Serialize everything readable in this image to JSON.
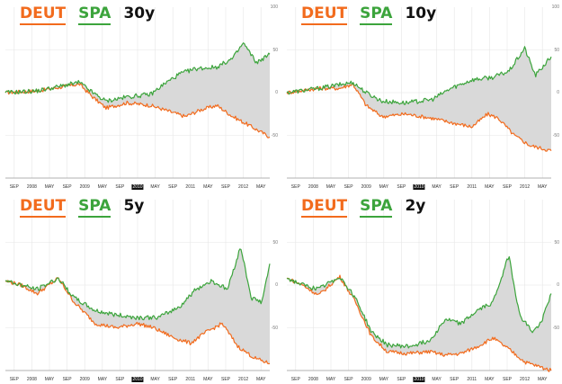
{
  "colors": {
    "deut": "#f26b1d",
    "spa": "#3ca43c",
    "fill": "#d9d9d9",
    "grid": "#e6e6e6"
  },
  "chart_data": [
    {
      "type": "line",
      "legend": [
        "DEUT",
        "SPA"
      ],
      "horizon": "30y",
      "ylim": [
        -100,
        100
      ],
      "yticks": [
        "100",
        "50",
        "0",
        "-50"
      ],
      "xticks": [
        "SEP",
        "2008",
        "MAY",
        "SEP",
        "2009",
        "MAY",
        "SEP",
        "2010",
        "MAY",
        "SEP",
        "2011",
        "MAY",
        "SEP",
        "2012",
        "MAY"
      ],
      "highlight_tick": 7,
      "grid": true,
      "series": [
        {
          "name": "DEUT",
          "anchors": [
            [
              0,
              0
            ],
            [
              0.12,
              2
            ],
            [
              0.28,
              10
            ],
            [
              0.33,
              -5
            ],
            [
              0.38,
              -18
            ],
            [
              0.46,
              -12
            ],
            [
              0.55,
              -15
            ],
            [
              0.62,
              -22
            ],
            [
              0.68,
              -28
            ],
            [
              0.74,
              -20
            ],
            [
              0.8,
              -15
            ],
            [
              0.86,
              -28
            ],
            [
              0.92,
              -38
            ],
            [
              1,
              -52
            ]
          ]
        },
        {
          "name": "SPA",
          "anchors": [
            [
              0,
              0
            ],
            [
              0.12,
              2
            ],
            [
              0.28,
              12
            ],
            [
              0.33,
              0
            ],
            [
              0.38,
              -10
            ],
            [
              0.46,
              -5
            ],
            [
              0.55,
              -2
            ],
            [
              0.6,
              10
            ],
            [
              0.66,
              22
            ],
            [
              0.72,
              28
            ],
            [
              0.8,
              30
            ],
            [
              0.86,
              40
            ],
            [
              0.9,
              58
            ],
            [
              0.95,
              35
            ],
            [
              1,
              45
            ]
          ]
        }
      ]
    },
    {
      "type": "line",
      "legend": [
        "DEUT",
        "SPA"
      ],
      "horizon": "10y",
      "ylim": [
        -100,
        100
      ],
      "yticks": [
        "100",
        "50",
        "0",
        "-50"
      ],
      "xticks": [
        "SEP",
        "2008",
        "MAY",
        "SEP",
        "2009",
        "MAY",
        "SEP",
        "2010",
        "MAY",
        "SEP",
        "2011",
        "MAY",
        "SEP",
        "2012",
        "MAY"
      ],
      "highlight_tick": 7,
      "grid": true,
      "series": [
        {
          "name": "DEUT",
          "anchors": [
            [
              0,
              0
            ],
            [
              0.12,
              5
            ],
            [
              0.2,
              5
            ],
            [
              0.25,
              10
            ],
            [
              0.3,
              -15
            ],
            [
              0.36,
              -28
            ],
            [
              0.45,
              -25
            ],
            [
              0.55,
              -30
            ],
            [
              0.62,
              -35
            ],
            [
              0.7,
              -40
            ],
            [
              0.76,
              -25
            ],
            [
              0.8,
              -30
            ],
            [
              0.86,
              -50
            ],
            [
              0.92,
              -62
            ],
            [
              1,
              -68
            ]
          ]
        },
        {
          "name": "SPA",
          "anchors": [
            [
              0,
              0
            ],
            [
              0.12,
              5
            ],
            [
              0.25,
              12
            ],
            [
              0.3,
              0
            ],
            [
              0.36,
              -10
            ],
            [
              0.45,
              -12
            ],
            [
              0.55,
              -8
            ],
            [
              0.62,
              5
            ],
            [
              0.7,
              15
            ],
            [
              0.78,
              18
            ],
            [
              0.84,
              25
            ],
            [
              0.9,
              52
            ],
            [
              0.94,
              20
            ],
            [
              1,
              42
            ]
          ]
        }
      ]
    },
    {
      "type": "line",
      "legend": [
        "DEUT",
        "SPA"
      ],
      "horizon": "5y",
      "ylim": [
        -100,
        100
      ],
      "yticks": [
        "50",
        "0",
        "-50"
      ],
      "xticks": [
        "SEP",
        "2008",
        "MAY",
        "SEP",
        "2009",
        "MAY",
        "SEP",
        "2010",
        "MAY",
        "SEP",
        "2011",
        "MAY",
        "SEP",
        "2012",
        "MAY"
      ],
      "highlight_tick": 7,
      "grid": true,
      "series": [
        {
          "name": "DEUT",
          "anchors": [
            [
              0,
              5
            ],
            [
              0.06,
              0
            ],
            [
              0.12,
              -10
            ],
            [
              0.2,
              8
            ],
            [
              0.26,
              -20
            ],
            [
              0.34,
              -45
            ],
            [
              0.42,
              -50
            ],
            [
              0.5,
              -45
            ],
            [
              0.56,
              -50
            ],
            [
              0.64,
              -62
            ],
            [
              0.7,
              -68
            ],
            [
              0.76,
              -55
            ],
            [
              0.82,
              -45
            ],
            [
              0.88,
              -72
            ],
            [
              0.94,
              -85
            ],
            [
              1,
              -92
            ]
          ]
        },
        {
          "name": "SPA",
          "anchors": [
            [
              0,
              5
            ],
            [
              0.06,
              0
            ],
            [
              0.12,
              -5
            ],
            [
              0.2,
              8
            ],
            [
              0.26,
              -15
            ],
            [
              0.34,
              -30
            ],
            [
              0.42,
              -35
            ],
            [
              0.5,
              -38
            ],
            [
              0.58,
              -38
            ],
            [
              0.66,
              -25
            ],
            [
              0.72,
              -5
            ],
            [
              0.78,
              5
            ],
            [
              0.84,
              -5
            ],
            [
              0.89,
              45
            ],
            [
              0.93,
              -15
            ],
            [
              0.97,
              -20
            ],
            [
              1,
              25
            ]
          ]
        }
      ]
    },
    {
      "type": "line",
      "legend": [
        "DEUT",
        "SPA"
      ],
      "horizon": "2y",
      "ylim": [
        -100,
        100
      ],
      "yticks": [
        "50",
        "0",
        "-50"
      ],
      "xticks": [
        "SEP",
        "2008",
        "MAY",
        "SEP",
        "2009",
        "MAY",
        "SEP",
        "2010",
        "MAY",
        "SEP",
        "2011",
        "MAY",
        "SEP",
        "2012",
        "MAY"
      ],
      "highlight_tick": 7,
      "grid": true,
      "series": [
        {
          "name": "DEUT",
          "anchors": [
            [
              0,
              8
            ],
            [
              0.06,
              0
            ],
            [
              0.12,
              -12
            ],
            [
              0.2,
              10
            ],
            [
              0.26,
              -20
            ],
            [
              0.32,
              -60
            ],
            [
              0.38,
              -78
            ],
            [
              0.46,
              -80
            ],
            [
              0.54,
              -78
            ],
            [
              0.6,
              -82
            ],
            [
              0.66,
              -80
            ],
            [
              0.72,
              -72
            ],
            [
              0.78,
              -62
            ],
            [
              0.84,
              -75
            ],
            [
              0.9,
              -90
            ],
            [
              0.96,
              -96
            ],
            [
              1,
              -100
            ]
          ]
        },
        {
          "name": "SPA",
          "anchors": [
            [
              0,
              8
            ],
            [
              0.06,
              0
            ],
            [
              0.12,
              -5
            ],
            [
              0.2,
              10
            ],
            [
              0.26,
              -15
            ],
            [
              0.32,
              -55
            ],
            [
              0.38,
              -70
            ],
            [
              0.46,
              -72
            ],
            [
              0.54,
              -65
            ],
            [
              0.6,
              -40
            ],
            [
              0.66,
              -45
            ],
            [
              0.72,
              -30
            ],
            [
              0.78,
              -20
            ],
            [
              0.84,
              35
            ],
            [
              0.88,
              -35
            ],
            [
              0.93,
              -55
            ],
            [
              0.96,
              -45
            ],
            [
              1,
              -10
            ]
          ]
        }
      ]
    }
  ]
}
